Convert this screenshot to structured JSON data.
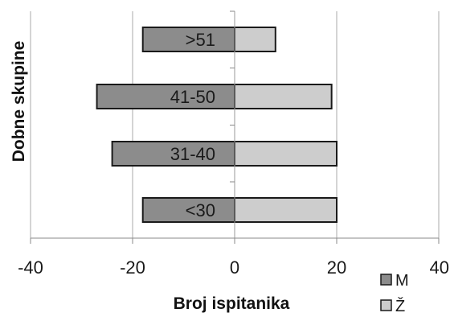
{
  "chart_data": {
    "type": "bar",
    "orientation": "horizontal",
    "stacked": "diverging",
    "categories": [
      ">51",
      "41-50",
      "31-40",
      "<30"
    ],
    "series": [
      {
        "name": "M",
        "values": [
          -18,
          -27,
          -24,
          -18
        ],
        "color": "#8c8c8c"
      },
      {
        "name": "Ž",
        "values": [
          8,
          19,
          20,
          20
        ],
        "color": "#cdcdcd"
      }
    ],
    "xlabel": "Broj ispitanika",
    "ylabel": "Dobne skupine",
    "xlim": [
      -40,
      40
    ],
    "xticks": [
      -40,
      -20,
      0,
      20,
      40
    ],
    "grid": "vertical",
    "legend": "bottom-right"
  }
}
